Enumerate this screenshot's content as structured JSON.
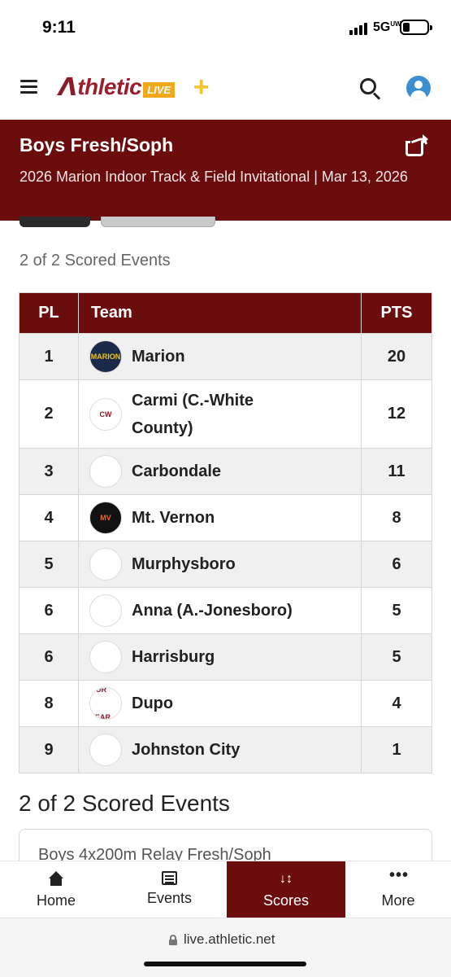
{
  "status_bar": {
    "time": "9:11",
    "network": "5G",
    "network_suffix": "UW"
  },
  "header": {
    "logo_text": "thletic",
    "logo_badge": "LIVE",
    "plus_symbol": "+"
  },
  "banner": {
    "title": "Boys Fresh/Soph",
    "subtitle": "2026 Marion Indoor Track & Field Invitational | Mar 13, 2026"
  },
  "scored_events_label": "2 of 2 Scored Events",
  "table": {
    "headers": {
      "place": "PL",
      "team": "Team",
      "points": "PTS"
    },
    "rows": [
      {
        "place": "1",
        "team": "Marion",
        "points": "20",
        "logo_text": "MARION",
        "logo_bg": "#1c2a4a",
        "logo_fg": "#f0c419"
      },
      {
        "place": "2",
        "team": "Carmi (C.-White County)",
        "points": "12",
        "logo_text": "CW",
        "logo_bg": "#ffffff",
        "logo_fg": "#8b1a2b"
      },
      {
        "place": "3",
        "team": "Carbondale",
        "points": "11",
        "logo_text": "",
        "logo_bg": "#ffffff",
        "logo_fg": "#333333"
      },
      {
        "place": "4",
        "team": "Mt. Vernon",
        "points": "8",
        "logo_text": "MV",
        "logo_bg": "#111111",
        "logo_fg": "#f26522"
      },
      {
        "place": "5",
        "team": "Murphysboro",
        "points": "6",
        "logo_text": "",
        "logo_bg": "#ffffff",
        "logo_fg": "#c1121f"
      },
      {
        "place": "6",
        "team": "Anna (A.-Jonesboro)",
        "points": "5",
        "logo_text": "",
        "logo_bg": "#ffffff",
        "logo_fg": "#3a4a5a"
      },
      {
        "place": "6",
        "team": "Harrisburg",
        "points": "5",
        "logo_text": "",
        "logo_bg": "#ffffff",
        "logo_fg": "#6a3fa0"
      },
      {
        "place": "8",
        "team": "Dupo",
        "points": "4",
        "logo_text": "OUR YEAR",
        "logo_bg": "#ffffff",
        "logo_fg": "#8b1a2b"
      },
      {
        "place": "9",
        "team": "Johnston City",
        "points": "1",
        "logo_text": "",
        "logo_bg": "#ffffff",
        "logo_fg": "#b01c1c"
      }
    ]
  },
  "events_section": {
    "heading": "2 of 2 Scored Events",
    "first_event": "Boys 4x200m Relay Fresh/Soph"
  },
  "bottom_nav": {
    "home": "Home",
    "events": "Events",
    "scores": "Scores",
    "more": "More",
    "active": "scores"
  },
  "browser": {
    "url": "live.athletic.net"
  },
  "colors": {
    "brand_maroon": "#6b0d0d",
    "accent_gold": "#f2a81d"
  },
  "icons": {
    "menu": "hamburger-icon",
    "search": "search-icon",
    "account": "user-icon",
    "share": "share-icon",
    "home": "home-icon",
    "events": "list-icon",
    "scores": "sort-icon",
    "more": "more-dots-icon",
    "lock": "lock-icon"
  }
}
